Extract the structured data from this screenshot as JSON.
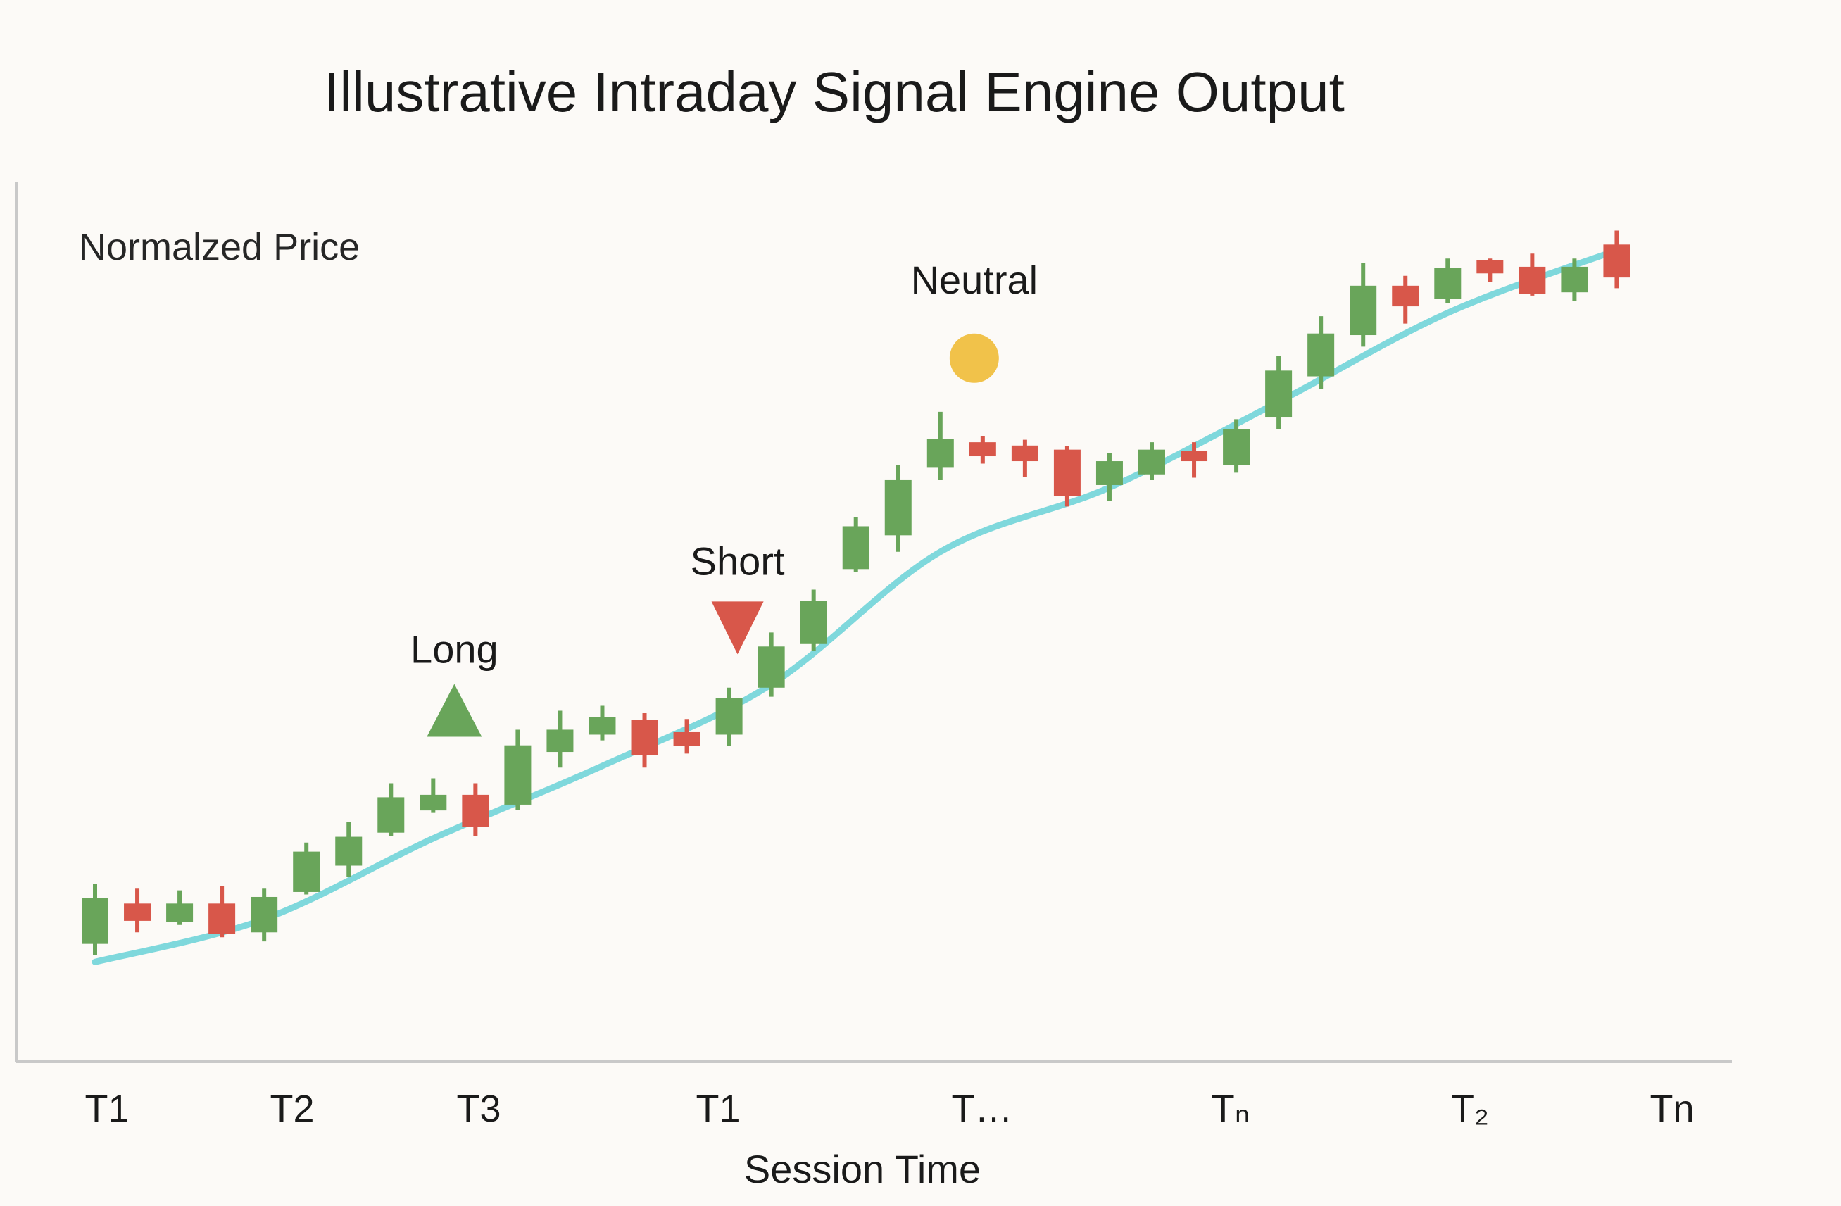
{
  "chart_data": {
    "type": "candlestick",
    "title": "Illustrative Intraday Signal Engine Output",
    "ylabel": "Normalzed Price",
    "xlabel": "Session Time",
    "x_tick_labels": [
      "T1",
      "T2",
      "T3",
      "T1",
      "T…",
      "Tₙ",
      "T₂",
      "Tn"
    ],
    "ylim": [
      0,
      100
    ],
    "grid": false,
    "legend": "none",
    "colors": {
      "up": "#69a55a",
      "down": "#d8574a",
      "trend": "#7fd8dc",
      "neutral": "#f1c24a"
    },
    "candles": [
      {
        "o": 10.2,
        "c": 15.8,
        "h": 17.5,
        "l": 8.8
      },
      {
        "o": 15.1,
        "c": 13.0,
        "h": 16.9,
        "l": 11.6
      },
      {
        "o": 12.9,
        "c": 15.1,
        "h": 16.7,
        "l": 12.5
      },
      {
        "o": 15.1,
        "c": 11.4,
        "h": 17.2,
        "l": 11.0
      },
      {
        "o": 11.6,
        "c": 15.9,
        "h": 16.9,
        "l": 10.5
      },
      {
        "o": 16.5,
        "c": 21.4,
        "h": 22.5,
        "l": 16.2
      },
      {
        "o": 19.7,
        "c": 23.2,
        "h": 25.0,
        "l": 18.3
      },
      {
        "o": 23.7,
        "c": 28.0,
        "h": 29.7,
        "l": 23.3
      },
      {
        "o": 26.4,
        "c": 28.3,
        "h": 30.3,
        "l": 26.1
      },
      {
        "o": 28.3,
        "c": 24.4,
        "h": 29.7,
        "l": 23.3
      },
      {
        "o": 27.1,
        "c": 34.3,
        "h": 36.2,
        "l": 26.5
      },
      {
        "o": 33.5,
        "c": 36.2,
        "h": 38.5,
        "l": 31.6
      },
      {
        "o": 35.6,
        "c": 37.7,
        "h": 39.1,
        "l": 34.9
      },
      {
        "o": 37.4,
        "c": 33.1,
        "h": 38.2,
        "l": 31.6
      },
      {
        "o": 35.9,
        "c": 34.2,
        "h": 37.5,
        "l": 33.3
      },
      {
        "o": 35.6,
        "c": 40.0,
        "h": 41.3,
        "l": 34.2
      },
      {
        "o": 41.3,
        "c": 46.3,
        "h": 48.0,
        "l": 40.2
      },
      {
        "o": 46.6,
        "c": 51.8,
        "h": 53.2,
        "l": 45.8
      },
      {
        "o": 55.7,
        "c": 60.9,
        "h": 62.0,
        "l": 55.3
      },
      {
        "o": 59.8,
        "c": 66.5,
        "h": 68.3,
        "l": 57.8
      },
      {
        "o": 68.0,
        "c": 71.5,
        "h": 74.8,
        "l": 66.5
      },
      {
        "o": 71.1,
        "c": 69.4,
        "h": 71.8,
        "l": 68.5
      },
      {
        "o": 70.7,
        "c": 68.8,
        "h": 71.4,
        "l": 66.9
      },
      {
        "o": 70.2,
        "c": 64.6,
        "h": 70.6,
        "l": 63.3
      },
      {
        "o": 65.9,
        "c": 68.8,
        "h": 69.8,
        "l": 64.0
      },
      {
        "o": 67.2,
        "c": 70.2,
        "h": 71.1,
        "l": 66.5
      },
      {
        "o": 70.0,
        "c": 68.8,
        "h": 71.1,
        "l": 66.8
      },
      {
        "o": 68.3,
        "c": 72.7,
        "h": 73.9,
        "l": 67.4
      },
      {
        "o": 74.1,
        "c": 79.8,
        "h": 81.6,
        "l": 72.7
      },
      {
        "o": 79.1,
        "c": 84.3,
        "h": 86.4,
        "l": 77.6
      },
      {
        "o": 84.1,
        "c": 90.1,
        "h": 92.9,
        "l": 82.7
      },
      {
        "o": 90.1,
        "c": 87.6,
        "h": 91.3,
        "l": 85.5
      },
      {
        "o": 88.5,
        "c": 92.3,
        "h": 93.4,
        "l": 88.0
      },
      {
        "o": 93.2,
        "c": 91.6,
        "h": 93.4,
        "l": 90.6
      },
      {
        "o": 92.4,
        "c": 89.1,
        "h": 94.0,
        "l": 88.9
      },
      {
        "o": 89.3,
        "c": 92.4,
        "h": 93.4,
        "l": 88.2
      },
      {
        "o": 95.1,
        "c": 91.1,
        "h": 96.8,
        "l": 89.8
      }
    ],
    "trend_line": {
      "x": [
        0,
        4,
        8,
        12,
        16,
        20,
        24,
        28,
        32,
        36
      ],
      "y": [
        8.0,
        13.2,
        23.0,
        31.8,
        41.7,
        57.8,
        65.6,
        76.0,
        86.8,
        94.4
      ]
    },
    "signals": [
      {
        "label": "Long",
        "index": 8.5,
        "y": 38.5,
        "shape": "triangle-up"
      },
      {
        "label": "Short",
        "index": 15.2,
        "y": 48.6,
        "shape": "triangle-down"
      },
      {
        "label": "Neutral",
        "index": 20.8,
        "y": 81.3,
        "shape": "circle"
      }
    ]
  }
}
